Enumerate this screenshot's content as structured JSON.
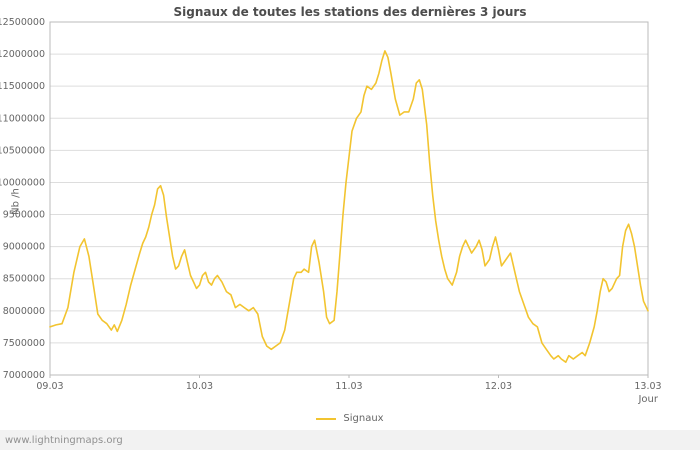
{
  "watermark": "www.lightningmaps.org",
  "colors": {
    "line": "#f2c430",
    "grid": "#dddddd",
    "axis": "#bbbbbb",
    "tick_text": "#666666",
    "title_text": "#4d4d4d",
    "footer_bg": "#f2f2f2"
  },
  "chart_data": {
    "type": "line",
    "title": "Signaux de toutes les stations des dernières 3 jours",
    "xlabel": "Jour",
    "ylabel": "Nb /h",
    "grid": "horizontal",
    "legend_position": "bottom-center",
    "x_tick_labels": [
      "09.03",
      "10.03",
      "11.03",
      "12.03",
      "13.03"
    ],
    "y_ticks": [
      7000000,
      7500000,
      8000000,
      8500000,
      9000000,
      9500000,
      10000000,
      10500000,
      11000000,
      11500000,
      12000000,
      12500000
    ],
    "ylim": [
      7000000,
      12500000
    ],
    "xlim": [
      0,
      4
    ],
    "series": [
      {
        "name": "Signaux",
        "color": "#f2c430",
        "points": [
          [
            0.0,
            7750000
          ],
          [
            0.04,
            7780000
          ],
          [
            0.08,
            7800000
          ],
          [
            0.12,
            8050000
          ],
          [
            0.16,
            8600000
          ],
          [
            0.2,
            9000000
          ],
          [
            0.23,
            9120000
          ],
          [
            0.26,
            8850000
          ],
          [
            0.29,
            8400000
          ],
          [
            0.32,
            7950000
          ],
          [
            0.35,
            7850000
          ],
          [
            0.38,
            7800000
          ],
          [
            0.41,
            7700000
          ],
          [
            0.43,
            7780000
          ],
          [
            0.45,
            7680000
          ],
          [
            0.48,
            7850000
          ],
          [
            0.51,
            8100000
          ],
          [
            0.54,
            8400000
          ],
          [
            0.57,
            8650000
          ],
          [
            0.6,
            8900000
          ],
          [
            0.62,
            9050000
          ],
          [
            0.64,
            9150000
          ],
          [
            0.66,
            9300000
          ],
          [
            0.68,
            9500000
          ],
          [
            0.7,
            9650000
          ],
          [
            0.72,
            9900000
          ],
          [
            0.74,
            9950000
          ],
          [
            0.76,
            9800000
          ],
          [
            0.78,
            9450000
          ],
          [
            0.8,
            9150000
          ],
          [
            0.82,
            8850000
          ],
          [
            0.84,
            8650000
          ],
          [
            0.86,
            8700000
          ],
          [
            0.88,
            8850000
          ],
          [
            0.9,
            8950000
          ],
          [
            0.92,
            8750000
          ],
          [
            0.94,
            8550000
          ],
          [
            0.96,
            8450000
          ],
          [
            0.98,
            8350000
          ],
          [
            1.0,
            8400000
          ],
          [
            1.02,
            8550000
          ],
          [
            1.04,
            8600000
          ],
          [
            1.06,
            8450000
          ],
          [
            1.08,
            8400000
          ],
          [
            1.1,
            8500000
          ],
          [
            1.12,
            8550000
          ],
          [
            1.15,
            8450000
          ],
          [
            1.18,
            8300000
          ],
          [
            1.21,
            8250000
          ],
          [
            1.24,
            8050000
          ],
          [
            1.27,
            8100000
          ],
          [
            1.3,
            8050000
          ],
          [
            1.33,
            8000000
          ],
          [
            1.36,
            8050000
          ],
          [
            1.39,
            7950000
          ],
          [
            1.42,
            7600000
          ],
          [
            1.45,
            7450000
          ],
          [
            1.48,
            7400000
          ],
          [
            1.51,
            7450000
          ],
          [
            1.54,
            7500000
          ],
          [
            1.57,
            7700000
          ],
          [
            1.6,
            8100000
          ],
          [
            1.63,
            8500000
          ],
          [
            1.65,
            8600000
          ],
          [
            1.68,
            8600000
          ],
          [
            1.7,
            8650000
          ],
          [
            1.73,
            8600000
          ],
          [
            1.75,
            9000000
          ],
          [
            1.77,
            9100000
          ],
          [
            1.8,
            8750000
          ],
          [
            1.83,
            8300000
          ],
          [
            1.85,
            7900000
          ],
          [
            1.87,
            7800000
          ],
          [
            1.9,
            7850000
          ],
          [
            1.92,
            8300000
          ],
          [
            1.94,
            8900000
          ],
          [
            1.96,
            9500000
          ],
          [
            1.98,
            10000000
          ],
          [
            2.0,
            10400000
          ],
          [
            2.02,
            10800000
          ],
          [
            2.05,
            11000000
          ],
          [
            2.08,
            11100000
          ],
          [
            2.1,
            11350000
          ],
          [
            2.12,
            11500000
          ],
          [
            2.15,
            11450000
          ],
          [
            2.18,
            11550000
          ],
          [
            2.2,
            11700000
          ],
          [
            2.22,
            11900000
          ],
          [
            2.24,
            12050000
          ],
          [
            2.26,
            11950000
          ],
          [
            2.28,
            11700000
          ],
          [
            2.31,
            11300000
          ],
          [
            2.34,
            11050000
          ],
          [
            2.37,
            11100000
          ],
          [
            2.4,
            11100000
          ],
          [
            2.43,
            11300000
          ],
          [
            2.45,
            11550000
          ],
          [
            2.47,
            11600000
          ],
          [
            2.49,
            11450000
          ],
          [
            2.52,
            10900000
          ],
          [
            2.54,
            10300000
          ],
          [
            2.56,
            9800000
          ],
          [
            2.58,
            9400000
          ],
          [
            2.6,
            9100000
          ],
          [
            2.62,
            8850000
          ],
          [
            2.64,
            8650000
          ],
          [
            2.66,
            8500000
          ],
          [
            2.69,
            8400000
          ],
          [
            2.72,
            8600000
          ],
          [
            2.74,
            8850000
          ],
          [
            2.76,
            9000000
          ],
          [
            2.78,
            9100000
          ],
          [
            2.8,
            9000000
          ],
          [
            2.82,
            8900000
          ],
          [
            2.85,
            9000000
          ],
          [
            2.87,
            9100000
          ],
          [
            2.89,
            8950000
          ],
          [
            2.91,
            8700000
          ],
          [
            2.94,
            8800000
          ],
          [
            2.96,
            9000000
          ],
          [
            2.98,
            9150000
          ],
          [
            3.0,
            8950000
          ],
          [
            3.02,
            8700000
          ],
          [
            3.05,
            8800000
          ],
          [
            3.08,
            8900000
          ],
          [
            3.11,
            8600000
          ],
          [
            3.14,
            8300000
          ],
          [
            3.17,
            8100000
          ],
          [
            3.2,
            7900000
          ],
          [
            3.23,
            7800000
          ],
          [
            3.26,
            7750000
          ],
          [
            3.29,
            7500000
          ],
          [
            3.32,
            7400000
          ],
          [
            3.35,
            7300000
          ],
          [
            3.37,
            7250000
          ],
          [
            3.4,
            7300000
          ],
          [
            3.42,
            7250000
          ],
          [
            3.45,
            7200000
          ],
          [
            3.47,
            7300000
          ],
          [
            3.5,
            7250000
          ],
          [
            3.53,
            7300000
          ],
          [
            3.56,
            7350000
          ],
          [
            3.58,
            7300000
          ],
          [
            3.61,
            7500000
          ],
          [
            3.64,
            7750000
          ],
          [
            3.66,
            8000000
          ],
          [
            3.68,
            8300000
          ],
          [
            3.7,
            8500000
          ],
          [
            3.72,
            8450000
          ],
          [
            3.74,
            8300000
          ],
          [
            3.76,
            8350000
          ],
          [
            3.79,
            8500000
          ],
          [
            3.81,
            8550000
          ],
          [
            3.83,
            9000000
          ],
          [
            3.85,
            9250000
          ],
          [
            3.87,
            9350000
          ],
          [
            3.89,
            9200000
          ],
          [
            3.91,
            9000000
          ],
          [
            3.93,
            8700000
          ],
          [
            3.95,
            8400000
          ],
          [
            3.97,
            8150000
          ],
          [
            4.0,
            8000000
          ]
        ]
      }
    ]
  }
}
